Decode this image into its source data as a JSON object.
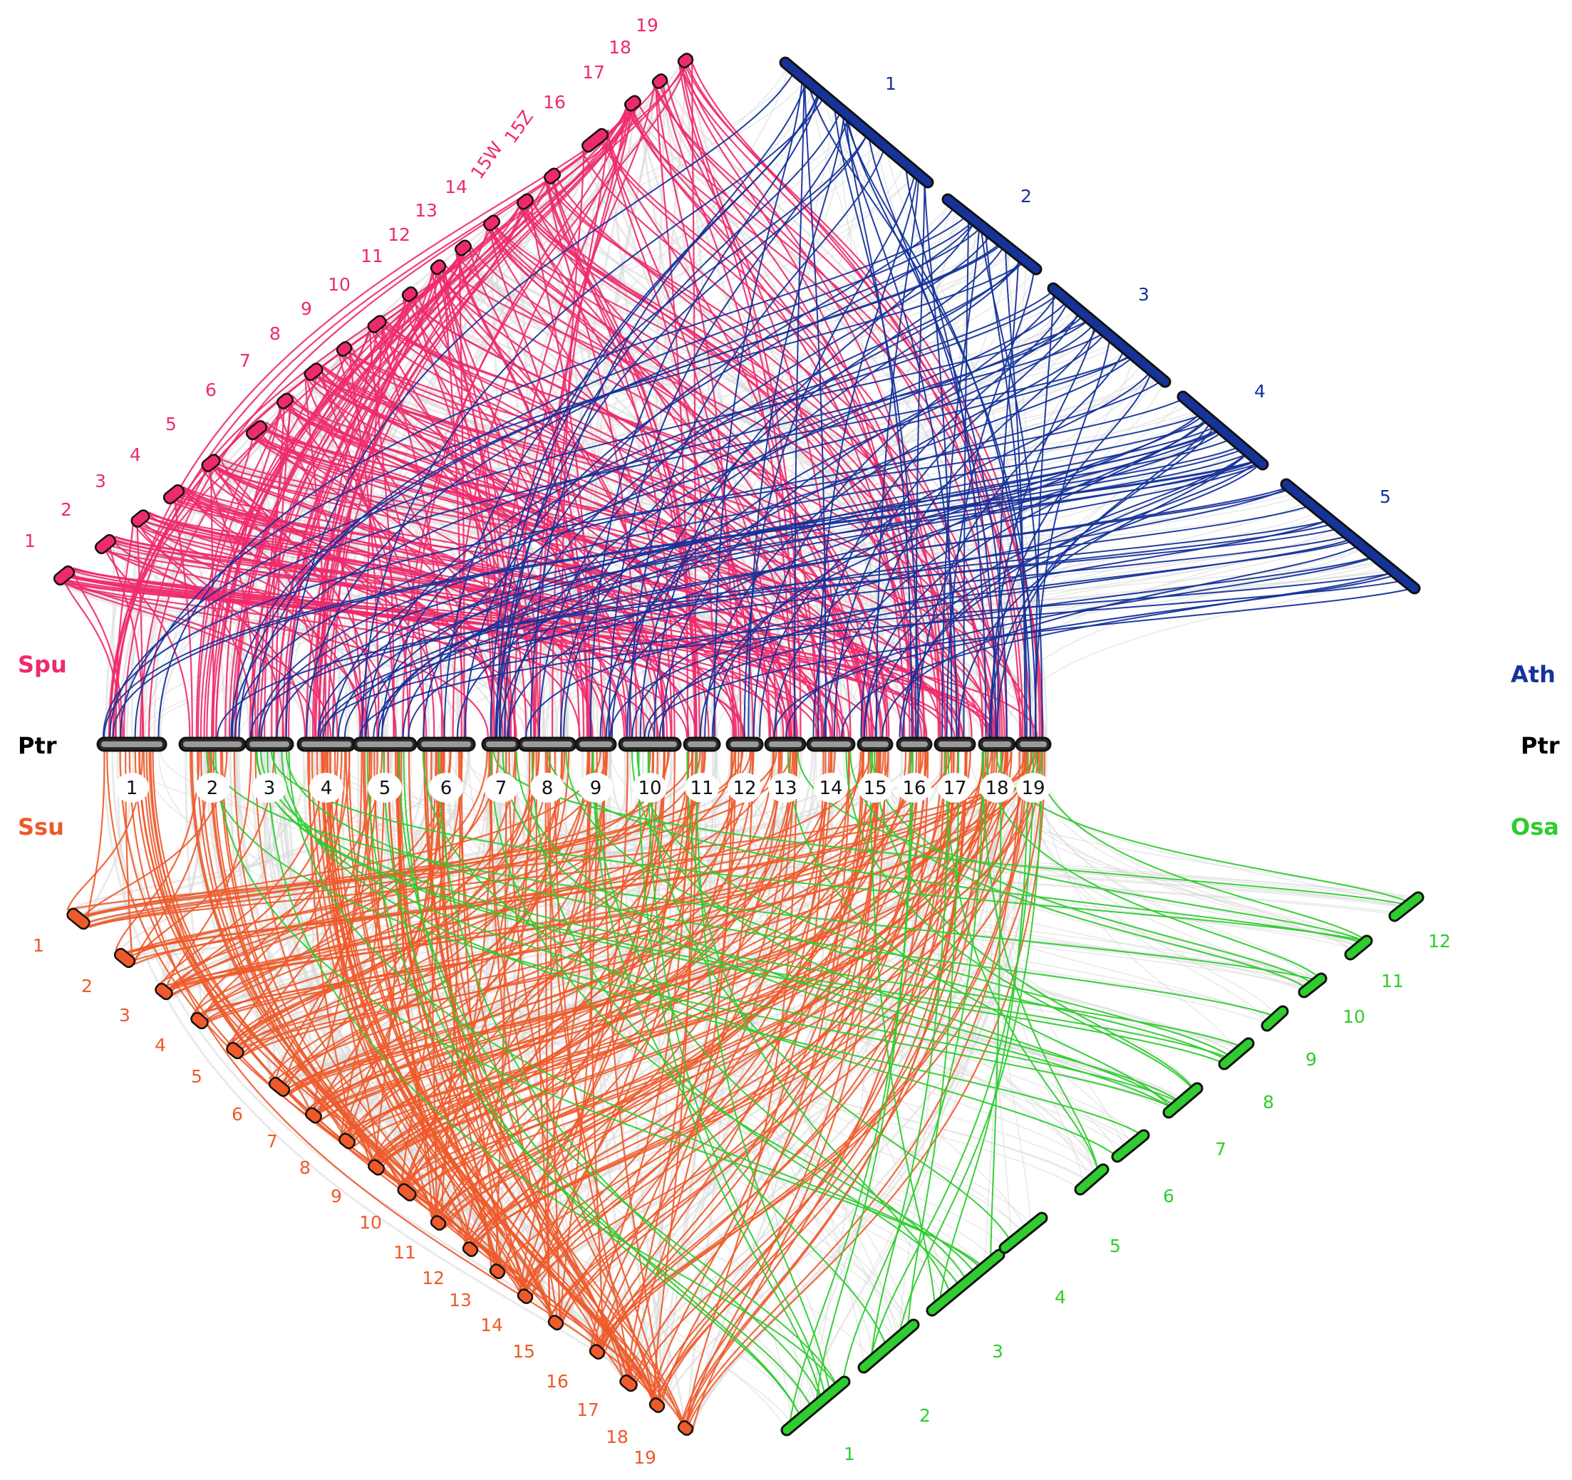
{
  "species": {
    "spu": {
      "label": "Spu",
      "color": "#ee2a6c"
    },
    "ath": {
      "label": "Ath",
      "color": "#16339a"
    },
    "ptr_left": {
      "label": "Ptr",
      "color": "#000000"
    },
    "ptr_right": {
      "label": "Ptr",
      "color": "#000000"
    },
    "ssu": {
      "label": "Ssu",
      "color": "#ee5a2a"
    },
    "osa": {
      "label": "Osa",
      "color": "#2ecc2e"
    }
  },
  "ptr_chromosomes": [
    "1",
    "2",
    "3",
    "4",
    "5",
    "6",
    "7",
    "8",
    "9",
    "10",
    "11",
    "12",
    "13",
    "14",
    "15",
    "16",
    "17",
    "18",
    "19"
  ],
  "spu_chromosomes": [
    "1",
    "2",
    "3",
    "4",
    "5",
    "6",
    "7",
    "8",
    "9",
    "10",
    "11",
    "12",
    "13",
    "14",
    "15W",
    "15Z",
    "16",
    "17",
    "18",
    "19"
  ],
  "ath_chromosomes": [
    "1",
    "2",
    "3",
    "4",
    "5"
  ],
  "ssu_chromosomes": [
    "1",
    "2",
    "3",
    "4",
    "5",
    "6",
    "7",
    "8",
    "9",
    "10",
    "11",
    "12",
    "13",
    "14",
    "15",
    "16",
    "17",
    "18",
    "19"
  ],
  "osa_chromosomes": [
    "1",
    "2",
    "3",
    "4",
    "5",
    "6",
    "7",
    "8",
    "9",
    "10",
    "11",
    "12"
  ],
  "colors": {
    "background_links": "#d9d9d9",
    "chromosome_outline": "#111111",
    "ptr_fill": "#9a9a9a"
  }
}
